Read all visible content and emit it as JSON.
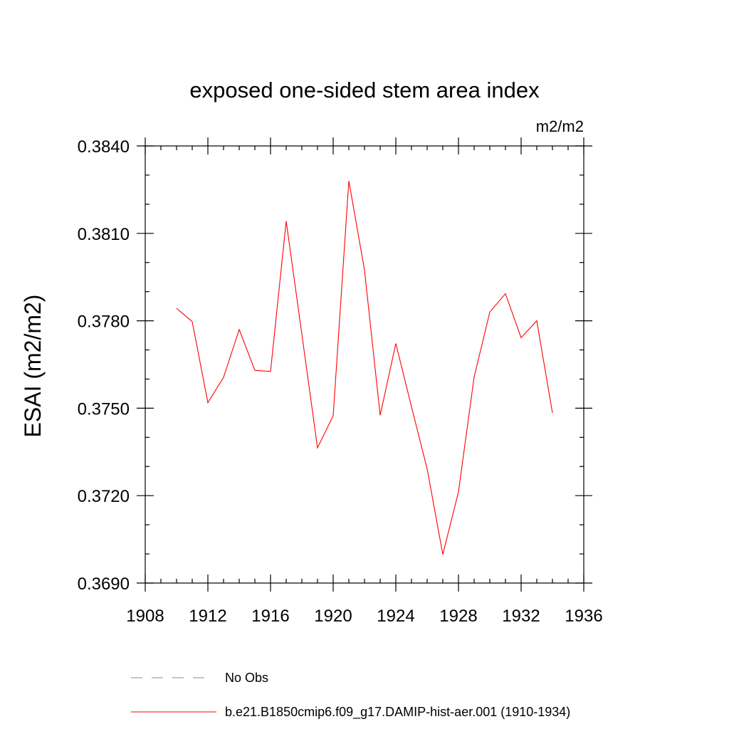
{
  "chart_data": {
    "type": "line",
    "title": "exposed one-sided stem area index",
    "units_label": "m2/m2",
    "ylabel": "ESAI  (m2/m2)",
    "xlabel": "",
    "xlim": [
      1908,
      1936
    ],
    "ylim": [
      0.369,
      0.384
    ],
    "x_ticks": [
      "1908",
      "1912",
      "1916",
      "1920",
      "1924",
      "1928",
      "1932",
      "1936"
    ],
    "y_ticks": [
      "0.3690",
      "0.3720",
      "0.3750",
      "0.3780",
      "0.3810",
      "0.3840"
    ],
    "grid": false,
    "legend_position": "bottom",
    "series": [
      {
        "name": "No Obs",
        "color": "#8a82c9",
        "dash": true,
        "x": [],
        "values": []
      },
      {
        "name": "b.e21.B1850cmip6.f09_g17.DAMIP-hist-aer.001 (1910-1934)",
        "color": "#ff0000",
        "dash": false,
        "x": [
          1910,
          1911,
          1912,
          1913,
          1914,
          1915,
          1916,
          1917,
          1918,
          1919,
          1920,
          1921,
          1922,
          1923,
          1924,
          1925,
          1926,
          1927,
          1928,
          1929,
          1930,
          1931,
          1932,
          1933,
          1934
        ],
        "values": [
          0.37843,
          0.37797,
          0.37519,
          0.37606,
          0.3777,
          0.3763,
          0.37626,
          0.38142,
          0.37754,
          0.37364,
          0.37474,
          0.3828,
          0.37974,
          0.37476,
          0.37722,
          0.37505,
          0.37292,
          0.36998,
          0.37213,
          0.37607,
          0.3783,
          0.37893,
          0.37742,
          0.378,
          0.37484
        ]
      }
    ]
  }
}
